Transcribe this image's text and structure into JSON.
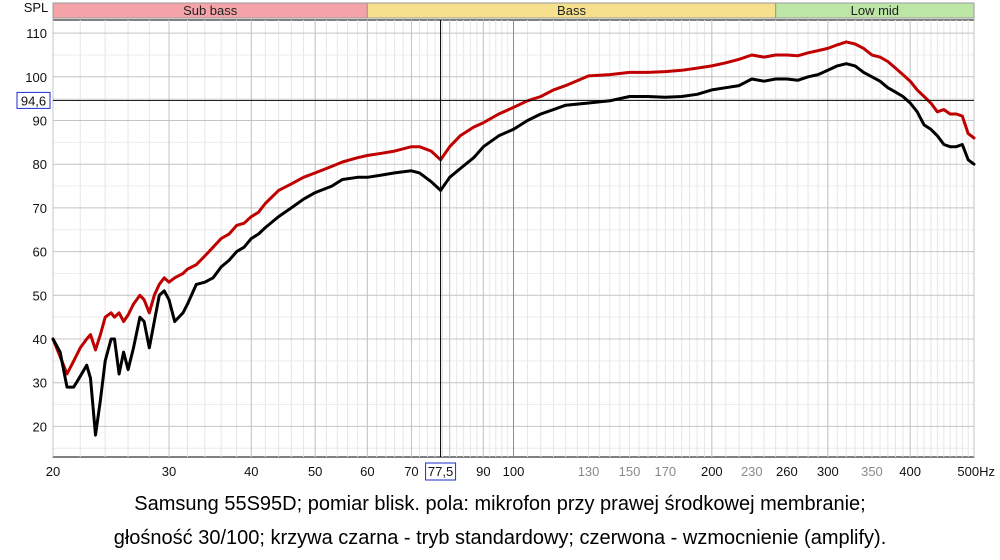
{
  "chart_data": {
    "type": "line",
    "ylabel": "SPL",
    "xunit": "Hz",
    "xscale": "log",
    "xlim": [
      20,
      500
    ],
    "ylim": [
      13,
      113
    ],
    "grid": true,
    "y_ticks": [
      20,
      30,
      40,
      50,
      60,
      70,
      80,
      90,
      100,
      110
    ],
    "x_ticks": [
      {
        "value": 20,
        "label": "20",
        "minor": false
      },
      {
        "value": 30,
        "label": "30",
        "minor": false
      },
      {
        "value": 40,
        "label": "40",
        "minor": false
      },
      {
        "value": 50,
        "label": "50",
        "minor": false
      },
      {
        "value": 60,
        "label": "60",
        "minor": false
      },
      {
        "value": 70,
        "label": "70",
        "minor": false
      },
      {
        "value": 90,
        "label": "90",
        "minor": false
      },
      {
        "value": 100,
        "label": "100",
        "minor": false
      },
      {
        "value": 130,
        "label": "130",
        "minor": true
      },
      {
        "value": 150,
        "label": "150",
        "minor": true
      },
      {
        "value": 170,
        "label": "170",
        "minor": true
      },
      {
        "value": 200,
        "label": "200",
        "minor": false
      },
      {
        "value": 230,
        "label": "230",
        "minor": true
      },
      {
        "value": 260,
        "label": "260",
        "minor": false
      },
      {
        "value": 300,
        "label": "300",
        "minor": false
      },
      {
        "value": 350,
        "label": "350",
        "minor": true
      },
      {
        "value": 400,
        "label": "400",
        "minor": false
      },
      {
        "value": 500,
        "label": "500Hz",
        "minor": false
      }
    ],
    "bands": [
      {
        "label": "Sub bass",
        "from": 20,
        "to": 60,
        "color": "#f4a3a8"
      },
      {
        "label": "Bass",
        "from": 60,
        "to": 250,
        "color": "#f6e08e"
      },
      {
        "label": "Low mid",
        "from": 250,
        "to": 500,
        "color": "#bce6a6"
      }
    ],
    "cursor": {
      "x": 77.5,
      "x_label": "77,5",
      "y": 94.6,
      "y_label": "94,6",
      "color": "#1a2fd6"
    },
    "series": [
      {
        "color": "#000000",
        "points": [
          [
            20,
            40
          ],
          [
            20.5,
            37
          ],
          [
            21,
            29
          ],
          [
            21.5,
            29
          ],
          [
            22,
            31.5
          ],
          [
            22.5,
            34
          ],
          [
            22.8,
            31
          ],
          [
            23.2,
            18
          ],
          [
            23.6,
            26
          ],
          [
            24,
            35
          ],
          [
            24.5,
            40
          ],
          [
            24.8,
            40
          ],
          [
            25.2,
            32
          ],
          [
            25.6,
            37
          ],
          [
            26,
            33
          ],
          [
            26.5,
            38
          ],
          [
            27.1,
            45
          ],
          [
            27.5,
            44
          ],
          [
            28,
            38
          ],
          [
            28.5,
            44
          ],
          [
            29,
            50
          ],
          [
            29.5,
            51
          ],
          [
            30,
            49
          ],
          [
            30.6,
            44
          ],
          [
            31.5,
            46
          ],
          [
            32,
            48
          ],
          [
            33,
            52.5
          ],
          [
            34,
            53
          ],
          [
            35,
            54
          ],
          [
            36,
            56.5
          ],
          [
            37,
            58
          ],
          [
            38,
            60
          ],
          [
            39,
            61
          ],
          [
            40,
            63
          ],
          [
            41,
            64
          ],
          [
            42,
            65.5
          ],
          [
            44,
            68
          ],
          [
            46,
            70
          ],
          [
            48,
            72
          ],
          [
            50,
            73.5
          ],
          [
            53,
            75
          ],
          [
            55,
            76.5
          ],
          [
            58,
            77
          ],
          [
            60,
            77
          ],
          [
            63,
            77.5
          ],
          [
            66,
            78
          ],
          [
            70,
            78.5
          ],
          [
            72,
            78
          ],
          [
            75,
            76
          ],
          [
            77.5,
            74
          ],
          [
            80,
            77
          ],
          [
            83,
            79
          ],
          [
            87,
            81.5
          ],
          [
            90,
            84
          ],
          [
            95,
            86.5
          ],
          [
            100,
            88
          ],
          [
            105,
            90
          ],
          [
            110,
            91.5
          ],
          [
            115,
            92.5
          ],
          [
            120,
            93.5
          ],
          [
            130,
            94
          ],
          [
            140,
            94.5
          ],
          [
            150,
            95.5
          ],
          [
            160,
            95.5
          ],
          [
            170,
            95.3
          ],
          [
            180,
            95.5
          ],
          [
            190,
            96
          ],
          [
            200,
            97
          ],
          [
            210,
            97.5
          ],
          [
            220,
            98
          ],
          [
            230,
            99.5
          ],
          [
            240,
            99
          ],
          [
            250,
            99.5
          ],
          [
            260,
            99.5
          ],
          [
            270,
            99.2
          ],
          [
            280,
            100
          ],
          [
            290,
            100.5
          ],
          [
            300,
            101.5
          ],
          [
            310,
            102.5
          ],
          [
            320,
            103
          ],
          [
            330,
            102.5
          ],
          [
            340,
            101
          ],
          [
            350,
            100
          ],
          [
            360,
            99
          ],
          [
            370,
            97.5
          ],
          [
            380,
            96.5
          ],
          [
            390,
            95.5
          ],
          [
            400,
            94
          ],
          [
            410,
            92
          ],
          [
            420,
            89
          ],
          [
            430,
            88
          ],
          [
            440,
            86.5
          ],
          [
            450,
            84.5
          ],
          [
            460,
            84
          ],
          [
            470,
            84
          ],
          [
            480,
            84.5
          ],
          [
            490,
            81
          ],
          [
            500,
            80
          ]
        ]
      },
      {
        "color": "#c00000",
        "points": [
          [
            20,
            40
          ],
          [
            20.5,
            36
          ],
          [
            21,
            32
          ],
          [
            21.5,
            35
          ],
          [
            22,
            38
          ],
          [
            22.5,
            40
          ],
          [
            22.8,
            41
          ],
          [
            23.2,
            37.5
          ],
          [
            23.6,
            41
          ],
          [
            24,
            45
          ],
          [
            24.5,
            46
          ],
          [
            24.8,
            45
          ],
          [
            25.2,
            46
          ],
          [
            25.6,
            44
          ],
          [
            26,
            45.5
          ],
          [
            26.5,
            48
          ],
          [
            27.1,
            50
          ],
          [
            27.5,
            49
          ],
          [
            28,
            46
          ],
          [
            28.5,
            50
          ],
          [
            29,
            52.5
          ],
          [
            29.5,
            54
          ],
          [
            30,
            53
          ],
          [
            30.6,
            54
          ],
          [
            31.5,
            55
          ],
          [
            32,
            56
          ],
          [
            33,
            57
          ],
          [
            34,
            59
          ],
          [
            35,
            61
          ],
          [
            36,
            63
          ],
          [
            37,
            64
          ],
          [
            38,
            66
          ],
          [
            39,
            66.5
          ],
          [
            40,
            68
          ],
          [
            41,
            69
          ],
          [
            42,
            71
          ],
          [
            44,
            74
          ],
          [
            46,
            75.5
          ],
          [
            48,
            77
          ],
          [
            50,
            78
          ],
          [
            53,
            79.5
          ],
          [
            55,
            80.5
          ],
          [
            58,
            81.5
          ],
          [
            60,
            82
          ],
          [
            63,
            82.5
          ],
          [
            66,
            83
          ],
          [
            70,
            84
          ],
          [
            72,
            84
          ],
          [
            75,
            83
          ],
          [
            77.5,
            81
          ],
          [
            80,
            84
          ],
          [
            83,
            86.5
          ],
          [
            87,
            88.5
          ],
          [
            90,
            89.5
          ],
          [
            95,
            91.5
          ],
          [
            100,
            93
          ],
          [
            105,
            94.5
          ],
          [
            110,
            95.5
          ],
          [
            115,
            97
          ],
          [
            120,
            98
          ],
          [
            130,
            100.2
          ],
          [
            140,
            100.5
          ],
          [
            150,
            101
          ],
          [
            160,
            101
          ],
          [
            170,
            101.2
          ],
          [
            180,
            101.5
          ],
          [
            190,
            102
          ],
          [
            200,
            102.5
          ],
          [
            210,
            103.2
          ],
          [
            220,
            104
          ],
          [
            230,
            105
          ],
          [
            240,
            104.5
          ],
          [
            250,
            105
          ],
          [
            260,
            105
          ],
          [
            270,
            104.8
          ],
          [
            280,
            105.5
          ],
          [
            290,
            106
          ],
          [
            300,
            106.5
          ],
          [
            310,
            107.3
          ],
          [
            320,
            108
          ],
          [
            330,
            107.5
          ],
          [
            340,
            106.5
          ],
          [
            350,
            105
          ],
          [
            360,
            104.5
          ],
          [
            370,
            103.5
          ],
          [
            380,
            102
          ],
          [
            390,
            100.5
          ],
          [
            400,
            99
          ],
          [
            410,
            97
          ],
          [
            420,
            95.5
          ],
          [
            430,
            94
          ],
          [
            440,
            92
          ],
          [
            450,
            92.5
          ],
          [
            460,
            91.5
          ],
          [
            470,
            91.5
          ],
          [
            480,
            91
          ],
          [
            490,
            87
          ],
          [
            500,
            86
          ]
        ]
      }
    ]
  },
  "caption": {
    "line1": "Samsung 55S95D; pomiar blisk. pola: mikrofon przy prawej środkowej membranie;",
    "line2": "głośność 30/100; krzywa czarna - tryb standardowy; czerwona - wzmocnienie (amplify)."
  }
}
